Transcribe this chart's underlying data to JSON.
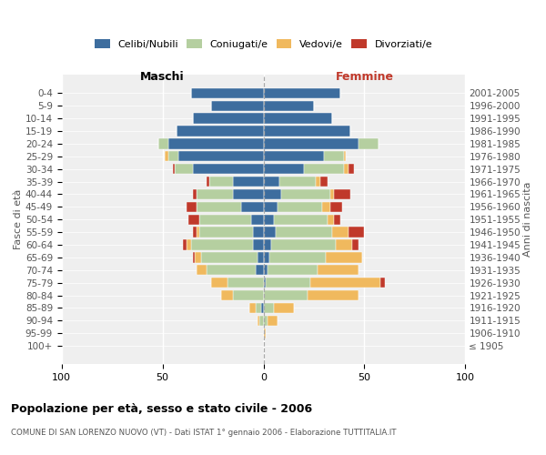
{
  "age_groups": [
    "100+",
    "95-99",
    "90-94",
    "85-89",
    "80-84",
    "75-79",
    "70-74",
    "65-69",
    "60-64",
    "55-59",
    "50-54",
    "45-49",
    "40-44",
    "35-39",
    "30-34",
    "25-29",
    "20-24",
    "15-19",
    "10-14",
    "5-9",
    "0-4"
  ],
  "birth_years": [
    "≤ 1905",
    "1906-1910",
    "1911-1915",
    "1916-1920",
    "1921-1925",
    "1926-1930",
    "1931-1935",
    "1936-1940",
    "1941-1945",
    "1946-1950",
    "1951-1955",
    "1956-1960",
    "1961-1965",
    "1966-1970",
    "1971-1975",
    "1976-1980",
    "1981-1985",
    "1986-1990",
    "1991-1995",
    "1996-2000",
    "2001-2005"
  ],
  "maschi_celibi": [
    0,
    0,
    0,
    1,
    0,
    0,
    4,
    3,
    5,
    5,
    6,
    11,
    15,
    15,
    35,
    42,
    47,
    43,
    35,
    26,
    36
  ],
  "maschi_coniugati": [
    0,
    0,
    2,
    3,
    15,
    18,
    24,
    28,
    31,
    27,
    26,
    22,
    18,
    12,
    9,
    5,
    5,
    0,
    0,
    0,
    0
  ],
  "maschi_vedovi": [
    0,
    0,
    1,
    3,
    6,
    8,
    5,
    3,
    2,
    1,
    0,
    0,
    0,
    0,
    0,
    2,
    0,
    0,
    0,
    0,
    0
  ],
  "maschi_divorziati": [
    0,
    0,
    0,
    0,
    0,
    0,
    0,
    1,
    2,
    2,
    5,
    5,
    2,
    1,
    1,
    0,
    0,
    0,
    0,
    0,
    0
  ],
  "femmine_nubili": [
    0,
    0,
    0,
    0,
    0,
    1,
    2,
    3,
    4,
    6,
    5,
    7,
    9,
    8,
    20,
    30,
    47,
    43,
    34,
    25,
    38
  ],
  "femmine_coniugate": [
    0,
    0,
    2,
    5,
    22,
    22,
    25,
    28,
    32,
    28,
    27,
    22,
    24,
    18,
    20,
    10,
    10,
    0,
    0,
    0,
    0
  ],
  "femmine_vedove": [
    0,
    1,
    5,
    10,
    25,
    35,
    20,
    18,
    8,
    8,
    3,
    4,
    2,
    2,
    2,
    1,
    0,
    0,
    0,
    0,
    0
  ],
  "femmine_divorziate": [
    0,
    0,
    0,
    0,
    0,
    2,
    0,
    0,
    3,
    8,
    3,
    6,
    8,
    4,
    3,
    0,
    0,
    0,
    0,
    0,
    0
  ],
  "color_celibi": "#3d6d9e",
  "color_coniugati": "#b5cfa0",
  "color_vedovi": "#f0b95e",
  "color_divorziati": "#c0392b",
  "xlim": 100,
  "title": "Popolazione per età, sesso e stato civile - 2006",
  "subtitle": "COMUNE DI SAN LORENZO NUOVO (VT) - Dati ISTAT 1° gennaio 2006 - Elaborazione TUTTITALIA.IT",
  "label_maschi": "Maschi",
  "label_femmine": "Femmine",
  "ylabel_left": "Fasce di età",
  "ylabel_right": "Anni di nascita",
  "legend_labels": [
    "Celibi/Nubili",
    "Coniugati/e",
    "Vedovi/e",
    "Divorziati/e"
  ],
  "bg_color": "#efefef"
}
